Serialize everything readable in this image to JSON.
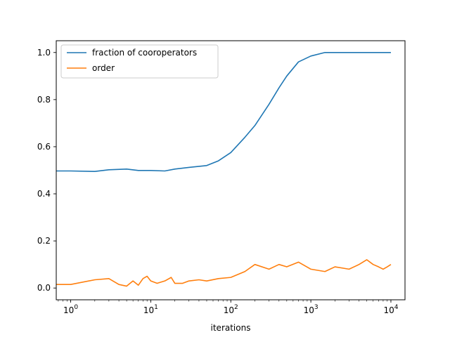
{
  "chart_data": {
    "type": "line",
    "title": "",
    "xlabel": "iterations",
    "ylabel": "",
    "xscale": "log",
    "xlim": [
      0.66,
      15000
    ],
    "ylim": [
      -0.05,
      1.05
    ],
    "x_ticks": [
      {
        "value": 1,
        "base": "10",
        "exp": "0"
      },
      {
        "value": 10,
        "base": "10",
        "exp": "1"
      },
      {
        "value": 100,
        "base": "10",
        "exp": "2"
      },
      {
        "value": 1000,
        "base": "10",
        "exp": "3"
      },
      {
        "value": 10000,
        "base": "10",
        "exp": "4"
      }
    ],
    "y_ticks": [
      {
        "value": 0.0,
        "label": "0.0"
      },
      {
        "value": 0.2,
        "label": "0.2"
      },
      {
        "value": 0.4,
        "label": "0.4"
      },
      {
        "value": 0.6,
        "label": "0.6"
      },
      {
        "value": 0.8,
        "label": "0.8"
      },
      {
        "value": 1.0,
        "label": "1.0"
      }
    ],
    "grid": false,
    "legend_position": "top-left",
    "series": [
      {
        "name": "fraction of cooroperators",
        "color": "#1f77b4",
        "x": [
          0.66,
          1,
          2,
          3,
          5,
          7,
          10,
          15,
          20,
          30,
          50,
          70,
          100,
          150,
          200,
          300,
          400,
          500,
          700,
          1000,
          1500,
          2000,
          5000,
          10000
        ],
        "y": [
          0.497,
          0.497,
          0.495,
          0.502,
          0.505,
          0.499,
          0.499,
          0.497,
          0.505,
          0.512,
          0.52,
          0.54,
          0.575,
          0.64,
          0.69,
          0.78,
          0.85,
          0.9,
          0.96,
          0.985,
          1.0,
          1.0,
          1.0,
          1.0
        ]
      },
      {
        "name": "order",
        "color": "#ff7f0e",
        "x": [
          0.66,
          1,
          2,
          3,
          4,
          5,
          6,
          7,
          8,
          9,
          10,
          12,
          15,
          18,
          20,
          25,
          30,
          40,
          50,
          70,
          100,
          150,
          200,
          300,
          400,
          500,
          700,
          1000,
          1500,
          2000,
          3000,
          4000,
          5000,
          6000,
          7000,
          8000,
          9000,
          10000
        ],
        "y": [
          0.015,
          0.015,
          0.035,
          0.04,
          0.015,
          0.008,
          0.03,
          0.012,
          0.04,
          0.05,
          0.03,
          0.02,
          0.03,
          0.045,
          0.02,
          0.02,
          0.03,
          0.035,
          0.03,
          0.04,
          0.045,
          0.07,
          0.1,
          0.08,
          0.1,
          0.09,
          0.11,
          0.08,
          0.07,
          0.09,
          0.08,
          0.1,
          0.12,
          0.1,
          0.09,
          0.08,
          0.09,
          0.1
        ]
      }
    ]
  }
}
